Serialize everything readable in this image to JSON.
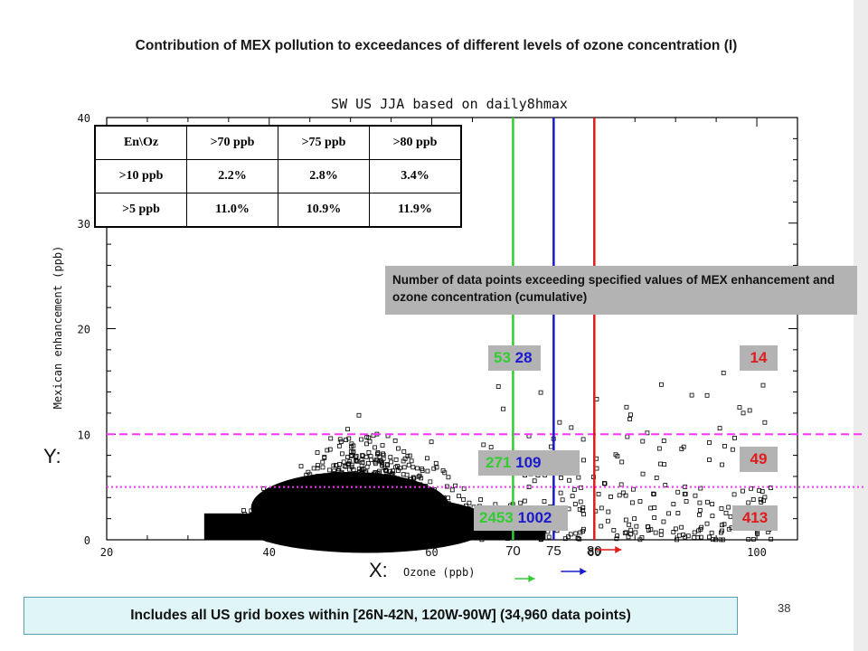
{
  "slide": {
    "title": "Contribution of MEX pollution to exceedances of different levels of ozone concentration (I)",
    "footer": "Includes all US grid boxes within [26N-42N, 120W-90W] (34,960 data points)",
    "page_number": "38"
  },
  "chart_data": {
    "type": "scatter",
    "title": "SW US JJA based on daily8hmax",
    "xlabel": "Ozone (ppb)",
    "ylabel": "Mexican enhancement (ppb)",
    "xlim": [
      20,
      105
    ],
    "ylim": [
      0,
      40
    ],
    "xticks": [
      20,
      40,
      60,
      80,
      100
    ],
    "yticks": [
      0,
      10,
      20,
      30,
      40
    ],
    "xtick_labels": [
      "20",
      "40",
      "60",
      "80",
      "100"
    ],
    "ytick_labels": [
      "0",
      "10",
      "20",
      "30",
      "40"
    ],
    "thresholds_x": [
      {
        "value": 70,
        "label": "70",
        "color": "#33cc33"
      },
      {
        "value": 75,
        "label": "75",
        "color": "#1a1acc"
      },
      {
        "value": 80,
        "label": "80",
        "color": "#e01b1b"
      }
    ],
    "thresholds_y": [
      {
        "value": 10,
        "color": "#ff33ff",
        "style": "dashed"
      },
      {
        "value": 5,
        "color": "#ff33ff",
        "style": "dotted"
      }
    ],
    "total_points": "34,960",
    "extra_labels": {
      "y_marker": "Y:",
      "x_marker": "X:"
    },
    "counts": {
      "header": "Number of data points exceeding specified values of MEX enhancement and ozone concentration (cumulative)",
      "rows": [
        {
          "g": "53",
          "b": "28",
          "r": "14"
        },
        {
          "g": "271",
          "b": "109",
          "r": "49"
        },
        {
          "g": "2453",
          "b": "1002",
          "r": "413"
        }
      ]
    },
    "table": {
      "header": [
        "En\\Oz",
        ">70 ppb",
        ">75 ppb",
        ">80 ppb"
      ],
      "rows": [
        [
          ">10 ppb",
          "2.2%",
          "2.8%",
          "3.4%"
        ],
        [
          ">5 ppb",
          "11.0%",
          "10.9%",
          "11.9%"
        ]
      ]
    }
  }
}
